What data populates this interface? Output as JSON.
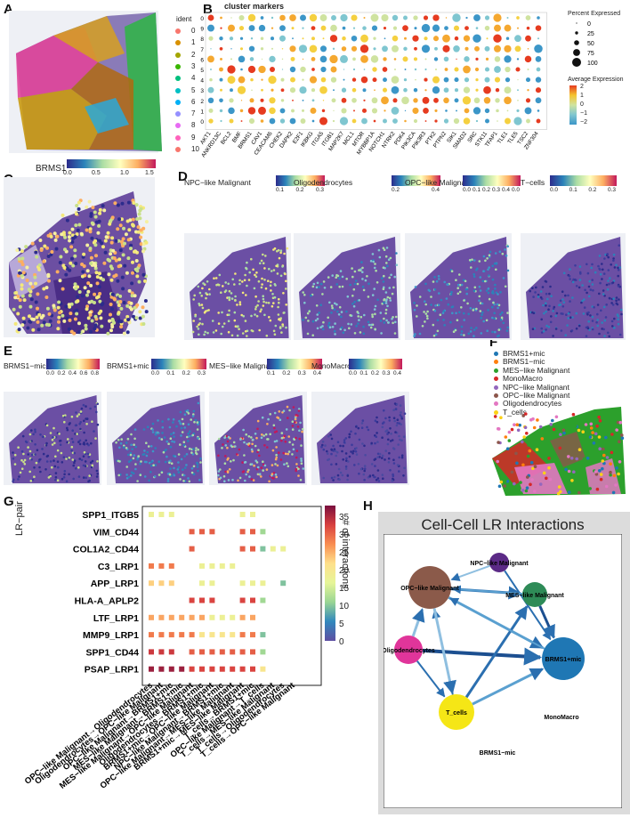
{
  "panels": {
    "A": {
      "letter": "A",
      "legend_title": "ident",
      "idents": [
        "0",
        "1",
        "2",
        "3",
        "4",
        "5",
        "6",
        "7",
        "8",
        "9",
        "10"
      ],
      "ident_colors": [
        "#f8766d",
        "#d89000",
        "#a3a500",
        "#39b600",
        "#00bf7d",
        "#00bfc4",
        "#00b0f6",
        "#9590ff",
        "#e76bf3",
        "#ff62bc",
        "#f8766d"
      ],
      "cbar_title": "BRMS1",
      "cbar_ticks": [
        "0.0",
        "0.5",
        "1.0",
        "1.5"
      ]
    },
    "B": {
      "letter": "B",
      "title": "cluster markers",
      "genes": [
        "AKT1",
        "ANKRD13C",
        "BCL2",
        "BMF",
        "BRMS1",
        "CAV1",
        "CEACAM6",
        "CHEK2",
        "DAPK2",
        "E2F1",
        "IKBKG",
        "ITGA5",
        "ITGB1",
        "MAP2K7",
        "MCL1",
        "MTOR",
        "MYBBP1A",
        "NOTCH1",
        "NTRK2",
        "PDK4",
        "PIK3CA",
        "PIK3R3",
        "PTK2",
        "PTPN2",
        "SIK1",
        "SMAD2",
        "SRC",
        "STK11",
        "TFAP1",
        "TLE1",
        "TLE5",
        "TSC2",
        "ZNF304"
      ],
      "clusters": [
        "0",
        "1",
        "2",
        "3",
        "4",
        "5",
        "6",
        "7",
        "8",
        "9",
        "10"
      ],
      "size_title": "Percent Expressed",
      "size_ticks": [
        "0",
        "25",
        "50",
        "75",
        "100"
      ],
      "color_title": "Average Expression",
      "color_ticks": [
        "2",
        "1",
        "0",
        "−1",
        "−2"
      ]
    },
    "C": {
      "letter": "C"
    },
    "D": {
      "letter": "D",
      "maps": [
        {
          "title": "NPC−like Malignant",
          "ticks": [
            "0.1",
            "0.2",
            "0.3"
          ]
        },
        {
          "title": "Oligodendrocytes",
          "ticks": [
            "0.2",
            "0.4"
          ]
        },
        {
          "title": "OPC−like Malignant",
          "ticks": [
            "0.0",
            "0.1",
            "0.2",
            "0.3",
            "0.4",
            "0.0"
          ]
        },
        {
          "title": "T−cells",
          "ticks": [
            "0.0",
            "0.1",
            "0.2",
            "0.3"
          ]
        }
      ]
    },
    "E": {
      "letter": "E",
      "maps": [
        {
          "title": "BRMS1−mic",
          "ticks": [
            "0.0",
            "0.2",
            "0.4",
            "0.6",
            "0.8"
          ]
        },
        {
          "title": "BRMS1+mic",
          "ticks": [
            "0.0",
            "0.1",
            "0.2",
            "0.3"
          ]
        },
        {
          "title": "MES−like Malignant",
          "ticks": [
            "0.1",
            "0.2",
            "0.3",
            "0.4"
          ]
        },
        {
          "title": "MonoMacro",
          "ticks": [
            "0.0",
            "0.1",
            "0.2",
            "0.3",
            "0.4"
          ]
        }
      ]
    },
    "F": {
      "letter": "F",
      "legend": [
        {
          "label": "BRMS1+mic",
          "color": "#1f77b4"
        },
        {
          "label": "BRMS1−mic",
          "color": "#ff7f0e"
        },
        {
          "label": "MES−like Malignant",
          "color": "#2ca02c"
        },
        {
          "label": "MonoMacro",
          "color": "#d62728"
        },
        {
          "label": "NPC−like Malignant",
          "color": "#9467bd"
        },
        {
          "label": "OPC−like Malignant",
          "color": "#8c564b"
        },
        {
          "label": "Oligodendrocytes",
          "color": "#e377c2"
        },
        {
          "label": "T_cells",
          "color": "#fcd116"
        }
      ]
    },
    "G": {
      "letter": "G",
      "ylabel": "LR−pair",
      "cbar_label": "# of interactions",
      "cbar_ticks": [
        "35",
        "30",
        "25",
        "20",
        "15",
        "10",
        "5",
        "0"
      ]
    },
    "H": {
      "letter": "H",
      "title": "Cell-Cell LR Interactions"
    }
  },
  "chart_data": {
    "type": "heatmap",
    "title": "",
    "ylabel": "LR−pair",
    "rows": [
      "SPP1_ITGB5",
      "VIM_CD44",
      "COL1A2_CD44",
      "C3_LRP1",
      "APP_LRP1",
      "HLA-A_APLP2",
      "LTF_LRP1",
      "MMP9_LRP1",
      "SPP1_CD44",
      "PSAP_LRP1"
    ],
    "columns": [
      "OPC−like Malignant→Oligodendrocytes",
      "Oligodendrocytes→OPC−like Malignant",
      "OPC−like Malignant→BRMS1+mic",
      "MES−like Malignant→BRMS1+mic",
      "MES−like Malignant→OPC−like Malignant",
      "Oligodendrocytes→BRMS1+mic",
      "BRMS1+mic→OPC−like Malignant",
      "NPC−like Malignant→BRMS1+mic",
      "OPC−like Malignant→MES−like Malignant",
      "BRMS1+mic→MES−like Malignant",
      "T_cells→BRMS1+mic",
      "OPC−like Malignant→T_cells",
      "T_cells→MES−like Malignant",
      "T_cells→Oligodendrocytes",
      "T_cells→OPC−like Malignant"
    ],
    "values": [
      [
        18,
        18,
        18,
        0,
        0,
        0,
        0,
        0,
        0,
        18,
        18,
        0,
        0,
        0,
        0
      ],
      [
        0,
        0,
        0,
        0,
        30,
        30,
        30,
        0,
        0,
        30,
        30,
        12,
        0,
        0,
        0
      ],
      [
        0,
        0,
        0,
        0,
        30,
        0,
        0,
        0,
        0,
        30,
        30,
        10,
        18,
        18,
        0
      ],
      [
        28,
        28,
        28,
        0,
        0,
        18,
        18,
        18,
        18,
        0,
        0,
        0,
        0,
        0,
        0
      ],
      [
        22,
        22,
        22,
        0,
        0,
        18,
        18,
        0,
        0,
        18,
        18,
        18,
        0,
        10,
        0
      ],
      [
        0,
        0,
        0,
        0,
        32,
        32,
        32,
        0,
        0,
        32,
        32,
        12,
        0,
        0,
        0
      ],
      [
        25,
        25,
        25,
        25,
        25,
        25,
        18,
        18,
        18,
        25,
        25,
        0,
        0,
        0,
        0
      ],
      [
        28,
        28,
        28,
        28,
        28,
        20,
        20,
        20,
        20,
        28,
        28,
        10,
        0,
        0,
        0
      ],
      [
        33,
        33,
        33,
        0,
        30,
        30,
        30,
        30,
        30,
        30,
        30,
        12,
        0,
        0,
        0
      ],
      [
        36,
        36,
        36,
        36,
        32,
        32,
        32,
        32,
        32,
        32,
        32,
        20,
        0,
        0,
        0
      ]
    ],
    "colorbar_range": [
      0,
      38
    ]
  },
  "network": {
    "nodes": [
      {
        "id": "NPC−like Malignant",
        "color": "#5b2a86"
      },
      {
        "id": "OPC−like Malignant",
        "color": "#8b5a4a"
      },
      {
        "id": "MES−like Malignant",
        "color": "#2e8b57"
      },
      {
        "id": "Oligodendrocytes",
        "color": "#e0359a"
      },
      {
        "id": "BRMS1+mic",
        "color": "#1f77b4"
      },
      {
        "id": "T_cells",
        "color": "#f5e616"
      },
      {
        "id": "MonoMacro",
        "color": "#ffffff"
      },
      {
        "id": "BRMS1−mic",
        "color": "#ffffff"
      }
    ]
  }
}
